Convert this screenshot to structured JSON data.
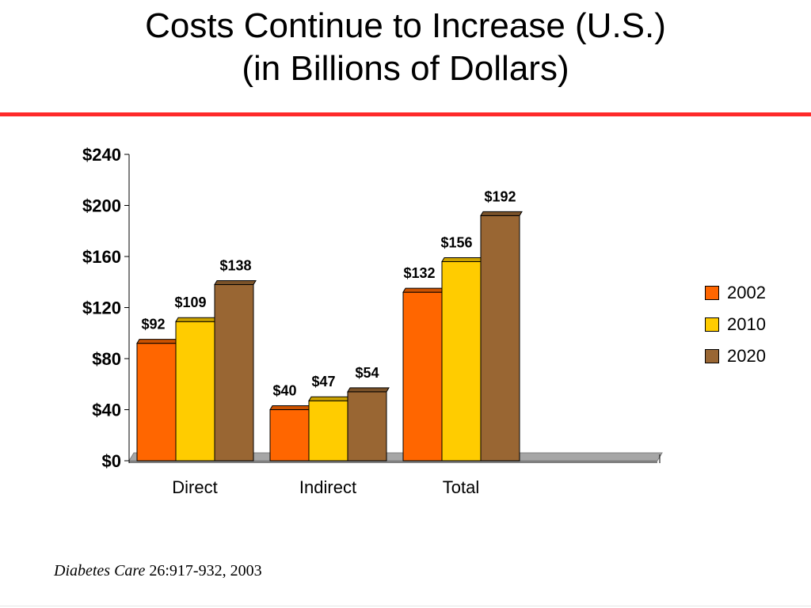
{
  "slide": {
    "title_line1": "Costs Continue to Increase (U.S.)",
    "title_line2": "(in Billions of Dollars)",
    "citation_journal": "Diabetes Care",
    "citation_ref": " 26:917-932, 2003",
    "accent_color": "#ff2a2a"
  },
  "chart_data": {
    "type": "bar",
    "categories": [
      "Direct",
      "Indirect",
      "Total"
    ],
    "series": [
      {
        "name": "2002",
        "values": [
          92,
          40,
          132
        ],
        "labels": [
          "$92",
          "$40",
          "$132"
        ],
        "color": "#ff6600"
      },
      {
        "name": "2010",
        "values": [
          109,
          47,
          156
        ],
        "labels": [
          "$109",
          "$47",
          "$156"
        ],
        "color": "#ffcc00"
      },
      {
        "name": "2020",
        "values": [
          138,
          54,
          192
        ],
        "labels": [
          "$138",
          "$54",
          "$192"
        ],
        "color": "#996633"
      }
    ],
    "ylim": [
      0,
      240
    ],
    "yticks": [
      "$0",
      "$40",
      "$80",
      "$120",
      "$160",
      "$200",
      "$240"
    ],
    "ytick_values": [
      0,
      40,
      80,
      120,
      160,
      200,
      240
    ],
    "legend_position": "right",
    "grid": false
  }
}
